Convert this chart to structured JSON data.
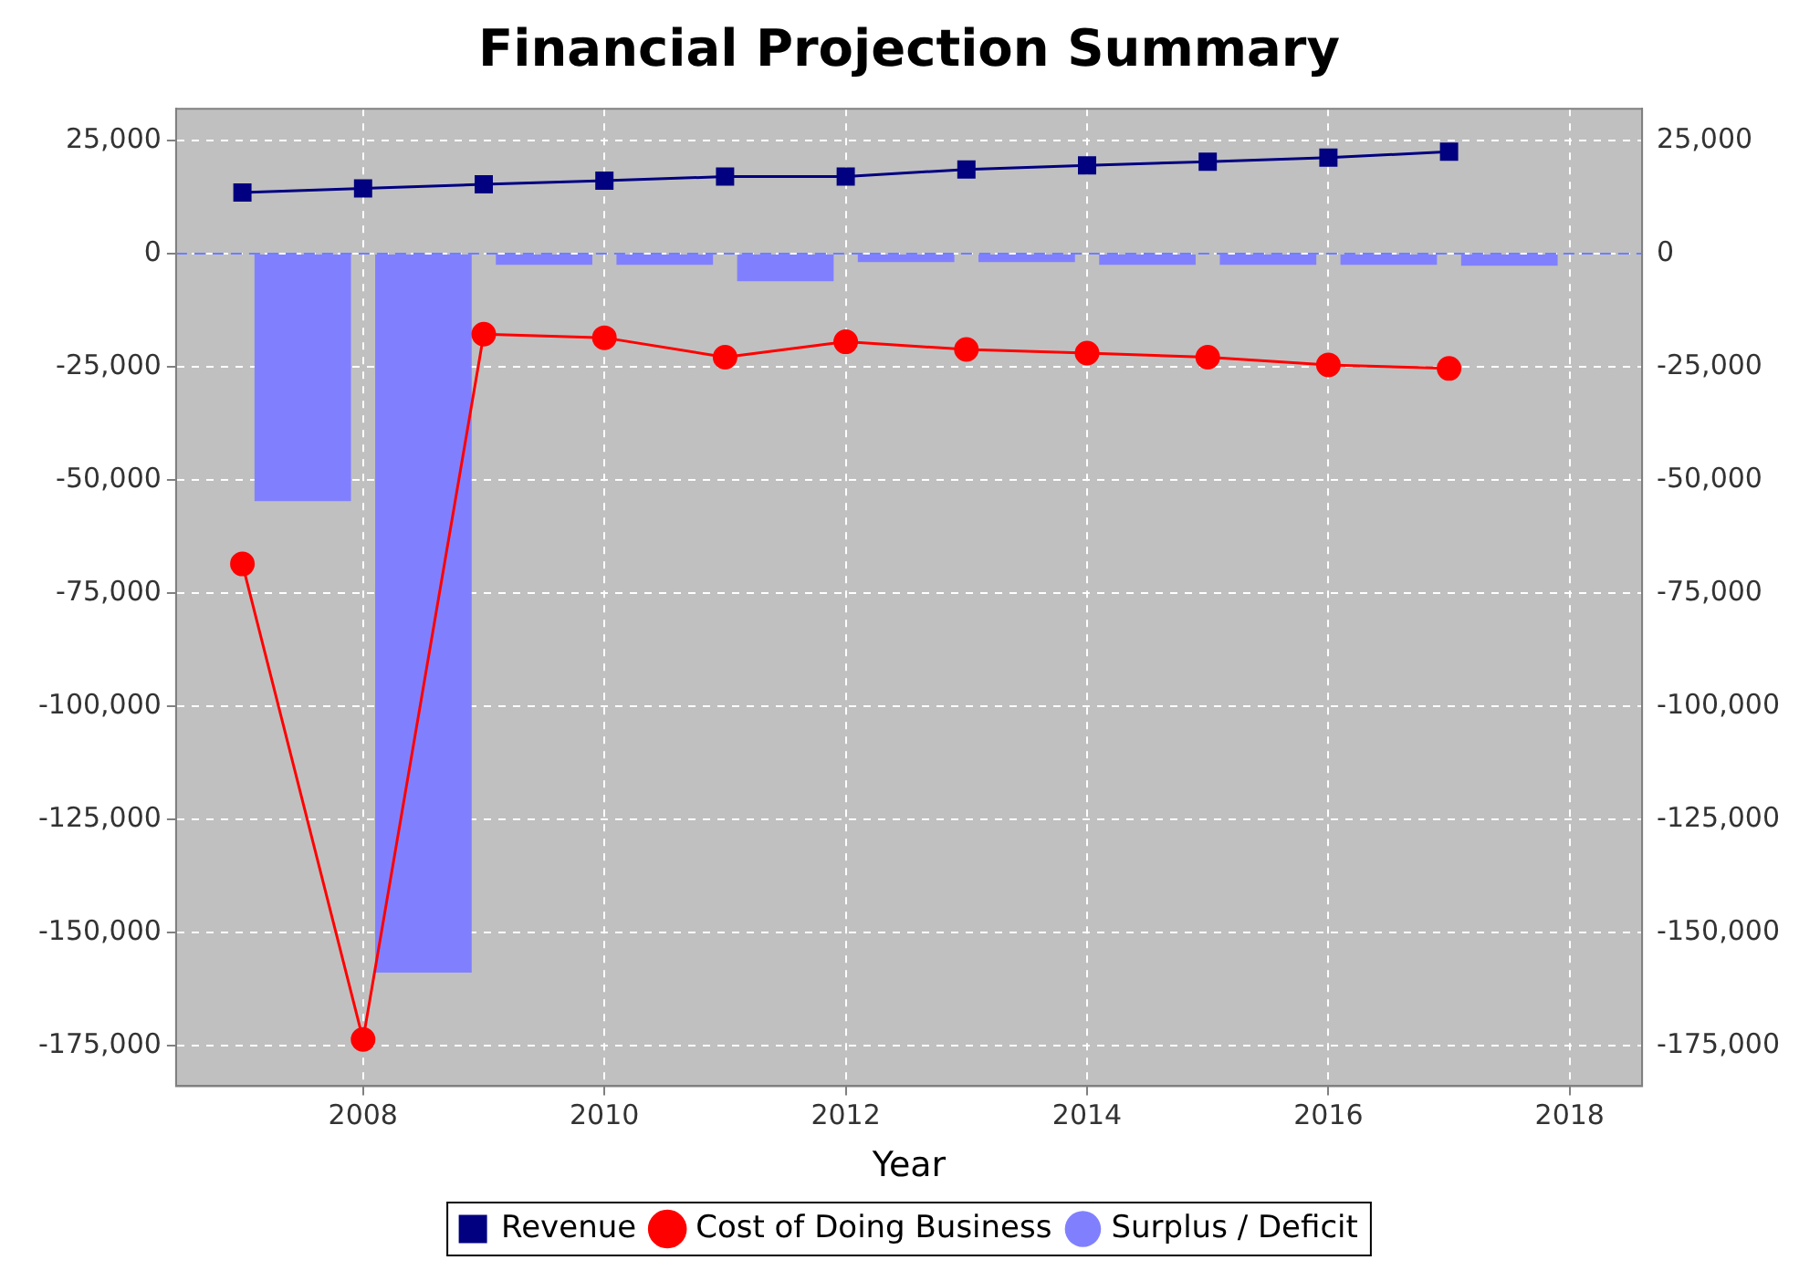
{
  "chart_data": {
    "type": "line",
    "title": "Financial Projection Summary",
    "xlabel": "Year",
    "x": [
      2007,
      2008,
      2009,
      2010,
      2011,
      2012,
      2013,
      2014,
      2015,
      2016,
      2017
    ],
    "series": [
      {
        "name": "Revenue",
        "color": "#000080",
        "marker": "square",
        "values": [
          13500,
          14400,
          15300,
          16100,
          17000,
          17000,
          18600,
          19500,
          20300,
          21200,
          22500
        ]
      },
      {
        "name": "Cost of Doing Business",
        "color": "#ff0000",
        "marker": "circle",
        "values": [
          -68600,
          -173700,
          -17800,
          -18600,
          -22900,
          -19500,
          -21200,
          -22000,
          -22900,
          -24600,
          -25400
        ]
      },
      {
        "name": "Surplus / Deficit",
        "type": "bar",
        "color": "#8080ff",
        "x": [
          2007.5,
          2008.5,
          2009.5,
          2010.5,
          2011.5,
          2012.5,
          2013.5,
          2014.5,
          2015.5,
          2016.5,
          2017.5
        ],
        "values": [
          -54700,
          -158900,
          -2500,
          -2500,
          -6100,
          -1900,
          -1900,
          -2500,
          -2500,
          -2500,
          -2700
        ]
      }
    ],
    "xlim": [
      2006.45,
      2018.6
    ],
    "xticks": [
      2008,
      2010,
      2012,
      2014,
      2016,
      2018
    ],
    "ylim": [
      -184000,
      32000
    ],
    "yticks": [
      {
        "value": -175000,
        "label": "-175,000"
      },
      {
        "value": -150000,
        "label": "-150,000"
      },
      {
        "value": -125000,
        "label": "-125,000"
      },
      {
        "value": -100000,
        "label": "-100,000"
      },
      {
        "value": -75000,
        "label": "-75,000"
      },
      {
        "value": -50000,
        "label": "-50,000"
      },
      {
        "value": -25000,
        "label": "-25,000"
      },
      {
        "value": 0,
        "label": "0"
      },
      {
        "value": 25000,
        "label": "25,000"
      }
    ],
    "y2lim": [
      -184000,
      32000
    ],
    "y2ticks": [
      {
        "value": -175000,
        "label": "-175,000"
      },
      {
        "value": -150000,
        "label": "-150,000"
      },
      {
        "value": -125000,
        "label": "-125,000"
      },
      {
        "value": -100000,
        "label": "-100,000"
      },
      {
        "value": -75000,
        "label": "-75,000"
      },
      {
        "value": -50000,
        "label": "-50,000"
      },
      {
        "value": -25000,
        "label": "-25,000"
      },
      {
        "value": 0,
        "label": "0"
      },
      {
        "value": 25000,
        "label": "25,000"
      }
    ],
    "ref_lines": [
      {
        "axis": "y",
        "value": 0,
        "color": "#6f7fff",
        "line_style": "dashed"
      }
    ],
    "grid": true,
    "legend": "bottom",
    "line_style": "solid"
  }
}
